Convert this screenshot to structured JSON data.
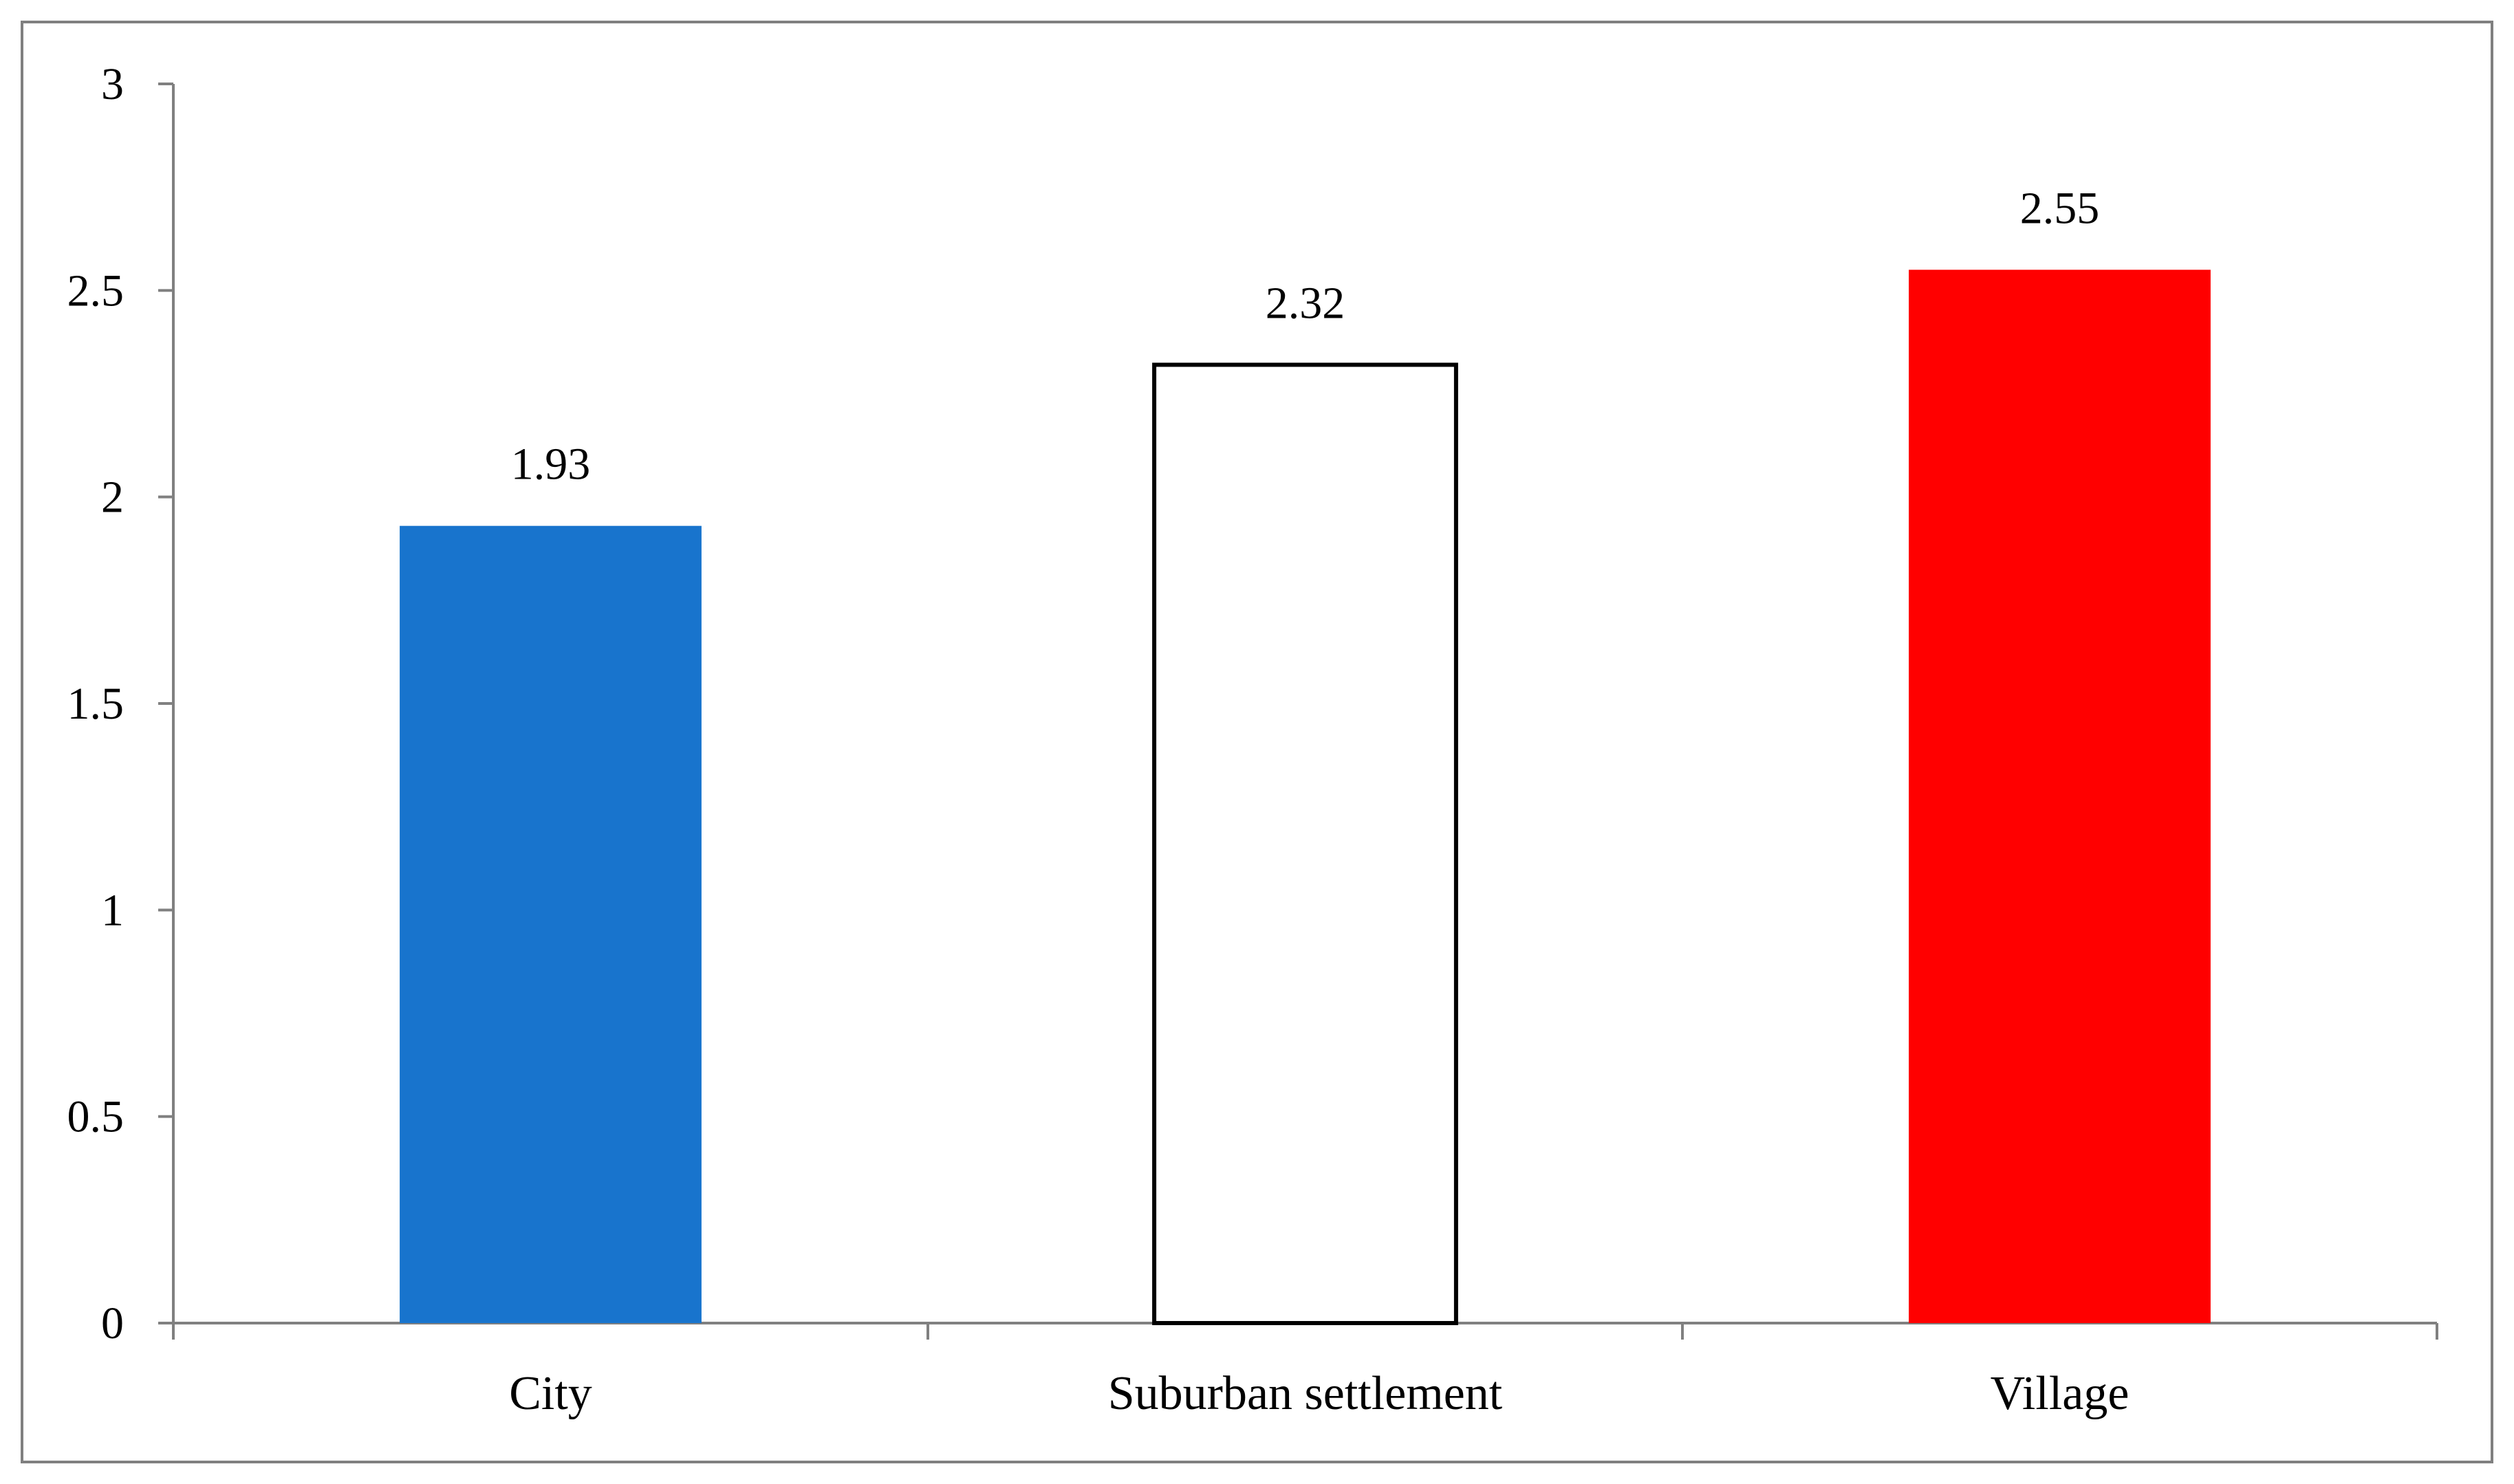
{
  "chart_data": {
    "type": "bar",
    "categories": [
      "City",
      "Suburban settlement",
      "Village"
    ],
    "values": [
      1.93,
      2.32,
      2.55
    ],
    "data_labels": [
      "1.93",
      "2.32",
      "2.55"
    ],
    "ylim": [
      0,
      3
    ],
    "yticks": [
      0,
      0.5,
      1,
      1.5,
      2,
      2.5,
      3
    ],
    "ytick_labels": [
      "0",
      "0.5",
      "1",
      "1.5",
      "2",
      "2.5",
      "3"
    ],
    "title": "",
    "xlabel": "",
    "ylabel": "",
    "grid": false,
    "bar_styles": [
      {
        "fill": "#1874CD",
        "stroke": "none"
      },
      {
        "fill": "#ffffff",
        "stroke": "#000000"
      },
      {
        "fill": "#FF0000",
        "stroke": "none"
      }
    ],
    "axis_color": "#808080"
  }
}
